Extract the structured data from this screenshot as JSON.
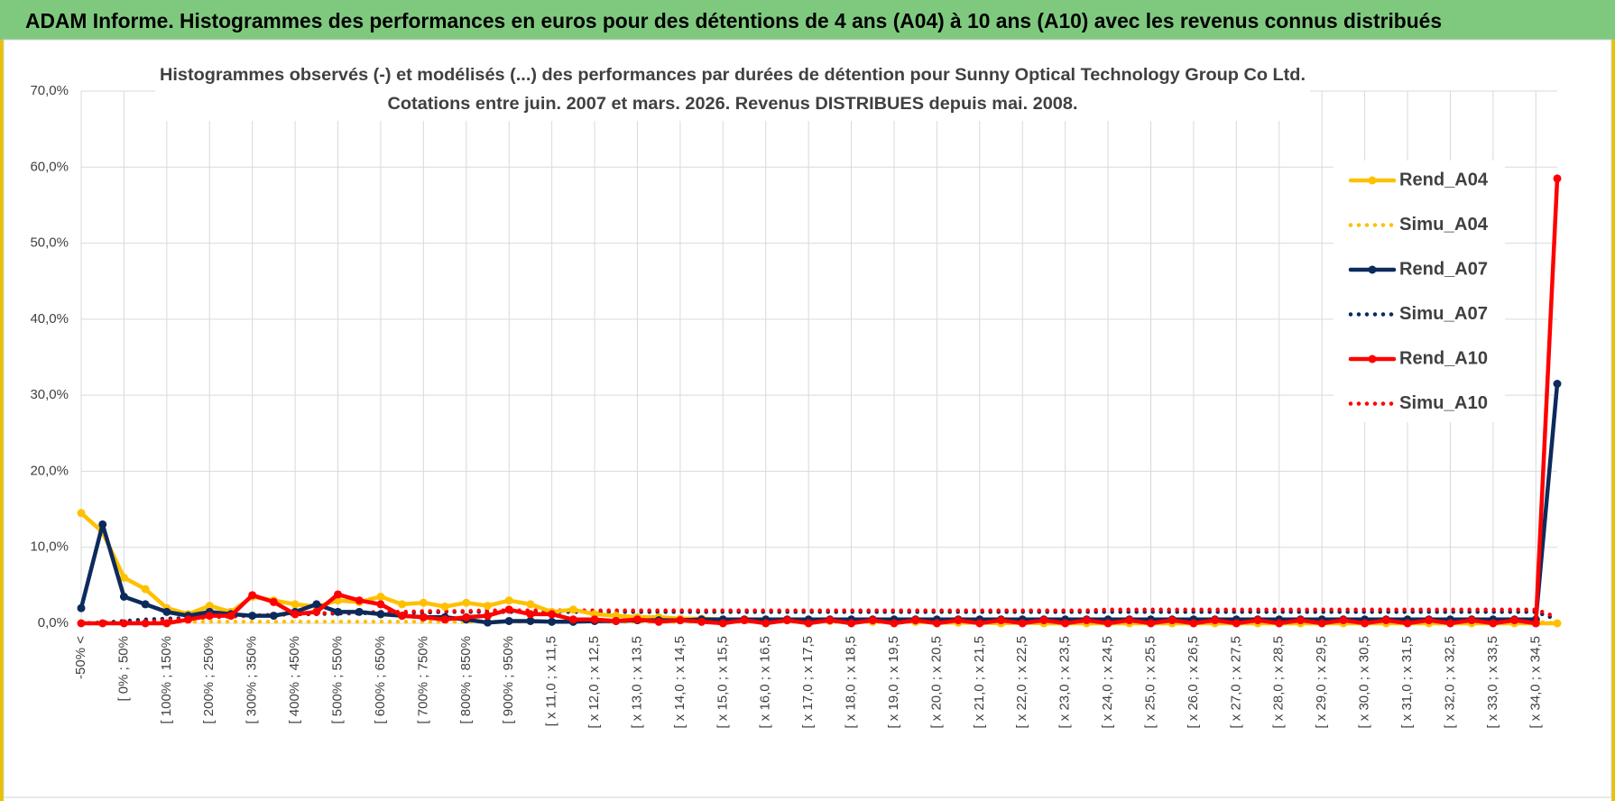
{
  "header": {
    "title": "ADAM Informe. Histogrammes des performances en euros pour des détentions de 4 ans (A04) à 10 ans (A10) avec les revenus connus distribués"
  },
  "chart_data": {
    "type": "line",
    "title": [
      "Histogrammes observés (-) et modélisés (...) des performances par durées de détention pour Sunny Optical Technology Group Co Ltd.",
      "Cotations entre juin. 2007 et mars. 2026. Revenus DISTRIBUES depuis mai. 2008."
    ],
    "categories": [
      "-50% <",
      null,
      "[ 0% ; 50%",
      null,
      "[ 100% ; 150%",
      null,
      "[ 200% ; 250%",
      null,
      "[ 300% ; 350%",
      null,
      "[ 400% ; 450%",
      null,
      "[ 500% ; 550%",
      null,
      "[ 600% ; 650%",
      null,
      "[ 700% ; 750%",
      null,
      "[ 800% ; 850%",
      null,
      "[ 900% ; 950%",
      null,
      "[ x 11,0 ; x 11,5",
      null,
      "[ x 12,0 ; x 12,5",
      null,
      "[ x 13,0 ; x 13,5",
      null,
      "[ x 14,0 ; x 14,5",
      null,
      "[ x 15,0 ; x 15,5",
      null,
      "[ x 16,0 ; x 16,5",
      null,
      "[ x 17,0 ; x 17,5",
      null,
      "[ x 18,0 ; x 18,5",
      null,
      "[ x 19,0 ; x 19,5",
      null,
      "[ x 20,0 ; x 20,5",
      null,
      "[ x 21,0 ; x 21,5",
      null,
      "[ x 22,0 ; x 22,5",
      null,
      "[ x 23,0 ; x 23,5",
      null,
      "[ x 24,0 ; x 24,5",
      null,
      "[ x 25,0 ; x 25,5",
      null,
      "[ x 26,0 ; x 26,5",
      null,
      "[ x 27,0 ; x 27,5",
      null,
      "[ x 28,0 ; x 28,5",
      null,
      "[ x 29,0 ; x 29,5",
      null,
      "[ x 30,0 ; x 30,5",
      null,
      "[ x 31,0 ; x 31,5",
      null,
      "[ x 32,0 ; x 32,5",
      null,
      "[ x 33,0 ; x 33,5",
      null,
      "[ x 34,0 ; x 34,5",
      null
    ],
    "series": [
      {
        "name": "Rend_A04",
        "color": "#ffc000",
        "line_style": "solid",
        "marker": true,
        "values": [
          14.5,
          12,
          6,
          4.5,
          2,
          1.2,
          2.3,
          1.5,
          3.5,
          3,
          2.5,
          2.2,
          3,
          2.8,
          3.5,
          2.5,
          2.7,
          2.2,
          2.7,
          2.3,
          3,
          2.5,
          1.5,
          1.8,
          1.2,
          1,
          0.8,
          0.8,
          0.6,
          0.6,
          0.5,
          0.5,
          0.4,
          0.4,
          0.3,
          0.3,
          0.3,
          0.2,
          0.2,
          0.2,
          0.1,
          0.1,
          0.1,
          0,
          0.1,
          0,
          0,
          0,
          0,
          0,
          0,
          0,
          0,
          0,
          0,
          0,
          0,
          0,
          0,
          0,
          0,
          0,
          0,
          0,
          0,
          0,
          0,
          0,
          0,
          0
        ]
      },
      {
        "name": "Simu_A04",
        "color": "#ffc000",
        "line_style": "dotted",
        "marker": false,
        "values": [
          0,
          0,
          0.1,
          0.1,
          0.2,
          0.2,
          0.2,
          0.2,
          0.2,
          0.2,
          0.2,
          0.2,
          0.2,
          0.2,
          0.2,
          0.2,
          0.2,
          0.2,
          0.2,
          0.2,
          0.2,
          0.2,
          0.2,
          0.2,
          0.2,
          0.2,
          0.2,
          0.2,
          0.2,
          0.2,
          0.2,
          0.2,
          0.2,
          0.2,
          0.2,
          0.2,
          0.2,
          0.2,
          0.2,
          0.2,
          0.2,
          0.2,
          0.2,
          0.2,
          0.2,
          0.2,
          0.2,
          0.2,
          0.2,
          0.2,
          0.2,
          0.2,
          0.2,
          0.2,
          0.2,
          0.2,
          0.2,
          0.2,
          0.2,
          0.2,
          0.2,
          0.2,
          0.2,
          0.2,
          0.2,
          0.2,
          0.2,
          0.2,
          0.2,
          0
        ]
      },
      {
        "name": "Rend_A07",
        "color": "#0d2a5c",
        "line_style": "solid",
        "marker": true,
        "values": [
          2,
          13,
          3.5,
          2.5,
          1.5,
          1,
          1.5,
          1.2,
          1,
          1,
          1.5,
          2.5,
          1.5,
          1.5,
          1.2,
          1,
          0.8,
          0.8,
          0.5,
          0.1,
          0.3,
          0.3,
          0.2,
          0.2,
          0.3,
          0.3,
          0.4,
          0.4,
          0.4,
          0.5,
          0.5,
          0.5,
          0.5,
          0.5,
          0.5,
          0.5,
          0.5,
          0.5,
          0.5,
          0.5,
          0.5,
          0.5,
          0.5,
          0.5,
          0.5,
          0.5,
          0.5,
          0.5,
          0.5,
          0.5,
          0.5,
          0.5,
          0.5,
          0.5,
          0.5,
          0.5,
          0.5,
          0.5,
          0.5,
          0.5,
          0.5,
          0.5,
          0.5,
          0.5,
          0.5,
          0.5,
          0.5,
          0.5,
          0.5,
          31.5
        ]
      },
      {
        "name": "Simu_A07",
        "color": "#0d2a5c",
        "line_style": "dotted",
        "marker": false,
        "values": [
          0,
          0.1,
          0.3,
          0.5,
          0.6,
          0.7,
          0.8,
          0.9,
          1,
          1.1,
          1.2,
          1.2,
          1.3,
          1.3,
          1.4,
          1.4,
          1.4,
          1.5,
          1.5,
          1.5,
          1.5,
          1.5,
          1.5,
          1.5,
          1.5,
          1.5,
          1.5,
          1.5,
          1.5,
          1.5,
          1.5,
          1.5,
          1.5,
          1.5,
          1.5,
          1.5,
          1.5,
          1.5,
          1.5,
          1.5,
          1.5,
          1.5,
          1.5,
          1.5,
          1.5,
          1.5,
          1.5,
          1.5,
          1.5,
          1.5,
          1.5,
          1.5,
          1.5,
          1.5,
          1.5,
          1.5,
          1.5,
          1.5,
          1.5,
          1.5,
          1.5,
          1.5,
          1.5,
          1.5,
          1.5,
          1.5,
          1.5,
          1.5,
          1.5,
          0.5
        ]
      },
      {
        "name": "Rend_A10",
        "color": "#ff0000",
        "line_style": "solid",
        "marker": true,
        "values": [
          0,
          0,
          0,
          0,
          0,
          0.5,
          1,
          1,
          3.7,
          2.8,
          1.2,
          1.5,
          3.8,
          3,
          2.5,
          1,
          0.8,
          0.5,
          0.8,
          1,
          1.8,
          1.2,
          1.2,
          0.5,
          0.5,
          0.3,
          0.5,
          0.2,
          0.4,
          0.2,
          0,
          0.4,
          0,
          0.4,
          0,
          0.4,
          0,
          0.4,
          0,
          0.4,
          0,
          0.4,
          0,
          0.4,
          0,
          0.4,
          0,
          0.4,
          0,
          0.4,
          0,
          0.4,
          0,
          0.4,
          0,
          0.4,
          0,
          0.4,
          0,
          0.4,
          0,
          0.4,
          0,
          0.4,
          0,
          0.4,
          0,
          0.4,
          0,
          58.5
        ]
      },
      {
        "name": "Simu_A10",
        "color": "#ff0000",
        "line_style": "dotted",
        "marker": false,
        "values": [
          0,
          0,
          0.1,
          0.2,
          0.4,
          0.6,
          0.8,
          0.9,
          1,
          1.1,
          1.2,
          1.3,
          1.4,
          1.4,
          1.5,
          1.5,
          1.6,
          1.6,
          1.6,
          1.7,
          1.7,
          1.7,
          1.7,
          1.7,
          1.7,
          1.7,
          1.7,
          1.7,
          1.7,
          1.7,
          1.7,
          1.7,
          1.7,
          1.7,
          1.7,
          1.7,
          1.7,
          1.7,
          1.7,
          1.7,
          1.7,
          1.7,
          1.7,
          1.7,
          1.7,
          1.7,
          1.7,
          1.7,
          1.8,
          1.8,
          1.8,
          1.8,
          1.8,
          1.8,
          1.8,
          1.8,
          1.8,
          1.8,
          1.8,
          1.8,
          1.8,
          1.8,
          1.8,
          1.8,
          1.8,
          1.8,
          1.8,
          1.8,
          1.8,
          0.8
        ]
      }
    ],
    "ylim": [
      0,
      70
    ],
    "yticks": [
      {
        "value": 0,
        "label": "0,0%"
      },
      {
        "value": 10,
        "label": "10,0%"
      },
      {
        "value": 20,
        "label": "20,0%"
      },
      {
        "value": 30,
        "label": "30,0%"
      },
      {
        "value": 40,
        "label": "40,0%"
      },
      {
        "value": 50,
        "label": "50,0%"
      },
      {
        "value": 60,
        "label": "60,0%"
      },
      {
        "value": 70,
        "label": "70,0%"
      }
    ],
    "grid": true,
    "legend": "right"
  }
}
